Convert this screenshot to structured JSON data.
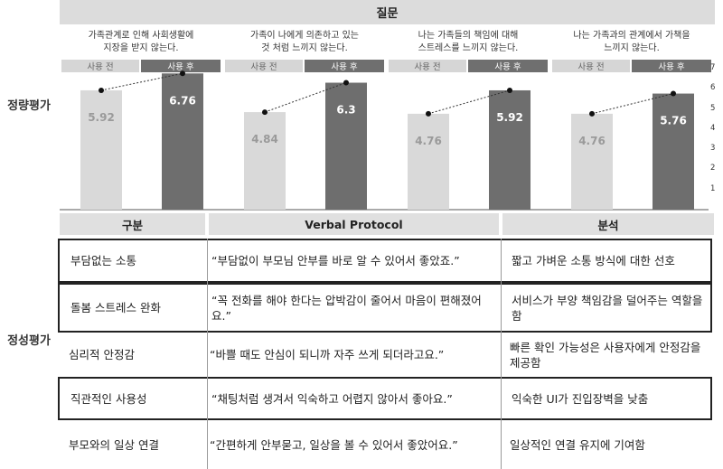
{
  "sections": {
    "quant": "정량평가",
    "qual": "정성평가"
  },
  "header": {
    "question": "질문"
  },
  "chart_data": {
    "type": "bar",
    "categories": [
      "가족관계로 인해 사회생활에\n지장을 받지 않는다.",
      "가족이 나에게 의존하고 있는\n것 처럼 느끼지 않는다.",
      "나는 가족들의 책임에 대해\n스트레스를 느끼지 않는다.",
      "나는 가족과의 관계에서 가책을\n느끼지 않는다."
    ],
    "series": [
      {
        "name": "사용 전",
        "values": [
          5.92,
          4.84,
          4.76,
          4.76
        ]
      },
      {
        "name": "사용 후",
        "values": [
          6.76,
          6.3,
          5.92,
          5.76
        ]
      }
    ],
    "yticks": [
      "1",
      "2",
      "3",
      "4",
      "5",
      "6",
      "7"
    ],
    "ylim": [
      0,
      7
    ],
    "colors": {
      "before": "#d9d9d9",
      "after": "#6e6e6e"
    }
  },
  "table": {
    "headers": [
      "구분",
      "Verbal Protocol",
      "분석"
    ],
    "rows": [
      {
        "category": "부담없는 소통",
        "protocol": "“부담없이 부모님 안부를 바로 알 수 있어서 좋았죠.”",
        "analysis": "짧고 가벼운 소통 방식에 대한 선호"
      },
      {
        "category": "돌봄 스트레스 완화",
        "protocol": "“꼭 전화를 해야 한다는 압박감이 줄어서 마음이 편해졌어요.”",
        "analysis": "서비스가 부양 책임감을 덜어주는 역할을 함"
      },
      {
        "category": "심리적 안정감",
        "protocol": "“바쁠 때도 안심이 되니까 자주 쓰게 되더라고요.”",
        "analysis": "빠른 확인 가능성은 사용자에게 안정감을 제공함"
      },
      {
        "category": "직관적인 사용성",
        "protocol": "“채팅처럼 생겨서 익숙하고 어렵지 않아서 좋아요.”",
        "analysis": "익숙한 UI가 진입장벽을 낮춤"
      },
      {
        "category": "부모와의 일상 연결",
        "protocol": "“간편하게 안부묻고, 일상을 볼 수 있어서 좋았어요.”",
        "analysis": "일상적인 연결 유지에 기여함"
      }
    ]
  }
}
